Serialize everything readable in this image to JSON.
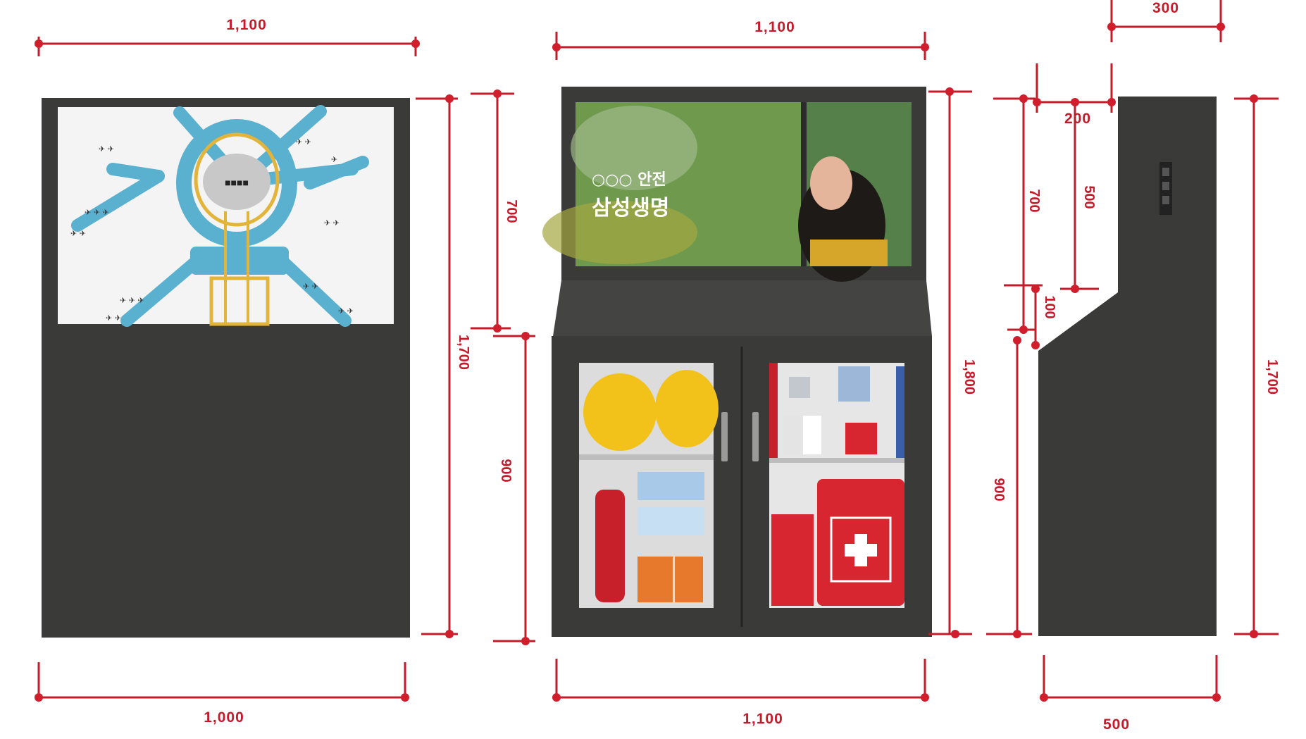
{
  "front_view": {
    "top_width": "1,100",
    "bottom_width": "1,000",
    "height_right": "1,700"
  },
  "center_view": {
    "top_width": "1,100",
    "bottom_width": "1,100",
    "screen_height": "700",
    "cabinet_height": "900",
    "total_height": "1,800",
    "screen_text_1": "○○○ 안전",
    "screen_text_2": "삼성생명"
  },
  "side_view": {
    "top_depth": "300",
    "top_offset": "200",
    "screen_height": "700",
    "screen_inner": "500",
    "slope_height": "100",
    "lower_height": "900",
    "total_height": "1,700",
    "bottom_depth": "500"
  },
  "colors": {
    "dimension": "#c41b2a",
    "cabinet": "#3a3a38",
    "map_path": "#5ab0cf",
    "map_route": "#e2b43a"
  },
  "icons": {
    "kit": "first-aid-cross-icon",
    "extinguisher": "fire-extinguisher-icon",
    "helmet": "helmet-icon"
  }
}
